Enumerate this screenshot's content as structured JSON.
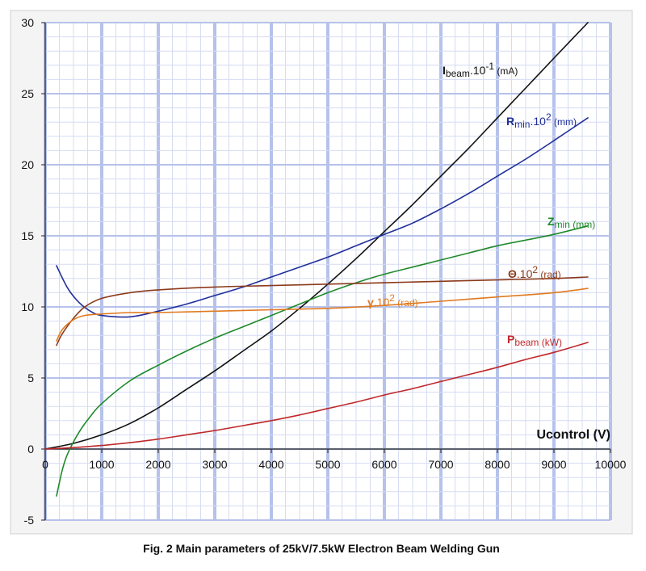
{
  "chart_data": {
    "type": "line",
    "title": "",
    "xlabel": "Ucontrol (V)",
    "ylabel": "",
    "xlim": [
      0,
      10000
    ],
    "ylim": [
      -5,
      30
    ],
    "x_ticks": [
      0,
      1000,
      2000,
      3000,
      4000,
      5000,
      6000,
      7000,
      8000,
      9000,
      10000
    ],
    "y_ticks": [
      -5,
      0,
      5,
      10,
      15,
      20,
      25,
      30
    ],
    "grid": true,
    "caption": "Fig. 2  Main parameters of 25kV/7.5kW Electron Beam Welding Gun",
    "series": [
      {
        "name": "Ibeam.10-1 (mA)",
        "label_main": "I",
        "label_sub": "beam",
        "label_rest": ".10",
        "label_sup": "-1",
        "label_unit": " (mA)",
        "color": "#111111",
        "x": [
          0,
          500,
          1000,
          1500,
          2000,
          2500,
          3000,
          3500,
          4000,
          4500,
          5000,
          5500,
          6000,
          6500,
          7000,
          7500,
          8000,
          8500,
          9000,
          9600
        ],
        "y": [
          0,
          0.4,
          1.0,
          1.8,
          2.9,
          4.2,
          5.5,
          6.9,
          8.3,
          9.9,
          11.6,
          13.4,
          15.3,
          17.2,
          19.2,
          21.2,
          23.3,
          25.4,
          27.5,
          30.0
        ]
      },
      {
        "name": "Rmin.10^2 (mm)",
        "label_main": "R",
        "label_sub": "min",
        "label_rest": ".10",
        "label_sup": "2",
        "label_unit": " (mm)",
        "color": "#1f2f9a",
        "x": [
          200,
          400,
          600,
          800,
          1000,
          1500,
          2000,
          2500,
          3000,
          3500,
          4000,
          4500,
          5000,
          5500,
          6000,
          6500,
          7000,
          7500,
          8000,
          8500,
          9000,
          9600
        ],
        "y": [
          12.9,
          11.3,
          10.3,
          9.7,
          9.4,
          9.3,
          9.7,
          10.2,
          10.8,
          11.4,
          12.1,
          12.8,
          13.5,
          14.3,
          15.1,
          15.9,
          16.9,
          18.0,
          19.2,
          20.4,
          21.7,
          23.3
        ]
      },
      {
        "name": "Zmin (mm)",
        "label_main": "Z",
        "label_sub": "min",
        "label_rest": "",
        "label_sup": "",
        "label_unit": " (mm)",
        "color": "#1e8a2a",
        "x": [
          200,
          300,
          400,
          600,
          800,
          1000,
          1500,
          2000,
          2500,
          3000,
          3500,
          4000,
          4500,
          5000,
          5500,
          6000,
          6500,
          7000,
          7500,
          8000,
          8500,
          9000,
          9600
        ],
        "y": [
          -3.3,
          -1.5,
          -0.3,
          1.2,
          2.3,
          3.2,
          4.8,
          5.9,
          6.9,
          7.8,
          8.6,
          9.4,
          10.2,
          11.0,
          11.7,
          12.3,
          12.8,
          13.3,
          13.8,
          14.3,
          14.7,
          15.1,
          15.7
        ]
      },
      {
        "name": "Θ.10^2 (rad)",
        "label_main": "Θ",
        "label_sub": "",
        "label_rest": ".10",
        "label_sup": "2",
        "label_unit": " (rad)",
        "color": "#8b3a1a",
        "x": [
          200,
          300,
          500,
          700,
          1000,
          1500,
          2000,
          3000,
          4000,
          5000,
          6000,
          7000,
          8000,
          9000,
          9600
        ],
        "y": [
          7.3,
          8.1,
          9.2,
          10.0,
          10.6,
          11.0,
          11.2,
          11.4,
          11.5,
          11.6,
          11.7,
          11.8,
          11.9,
          12.0,
          12.1
        ]
      },
      {
        "name": "γ.10^2 (rad)",
        "label_main": "γ",
        "label_sub": "",
        "label_rest": ".10",
        "label_sup": "2",
        "label_unit": " (rad)",
        "color": "#e07a20",
        "x": [
          200,
          300,
          500,
          700,
          1000,
          1500,
          2000,
          3000,
          4000,
          5000,
          6000,
          7000,
          8000,
          9000,
          9600
        ],
        "y": [
          7.6,
          8.4,
          9.1,
          9.4,
          9.5,
          9.6,
          9.6,
          9.7,
          9.8,
          9.9,
          10.1,
          10.4,
          10.7,
          11.0,
          11.3
        ]
      },
      {
        "name": "Pbeam (kW)",
        "label_main": "P",
        "label_sub": "beam",
        "label_rest": "",
        "label_sup": "",
        "label_unit": " (kW)",
        "color": "#c0282a",
        "x": [
          0,
          500,
          1000,
          1500,
          2000,
          2500,
          3000,
          3500,
          4000,
          4500,
          5000,
          5500,
          6000,
          6500,
          7000,
          7500,
          8000,
          8500,
          9000,
          9600
        ],
        "y": [
          0,
          0.1,
          0.25,
          0.45,
          0.7,
          1.0,
          1.3,
          1.65,
          2.0,
          2.4,
          2.85,
          3.3,
          3.8,
          4.25,
          4.75,
          5.25,
          5.75,
          6.3,
          6.8,
          7.5
        ]
      }
    ]
  }
}
